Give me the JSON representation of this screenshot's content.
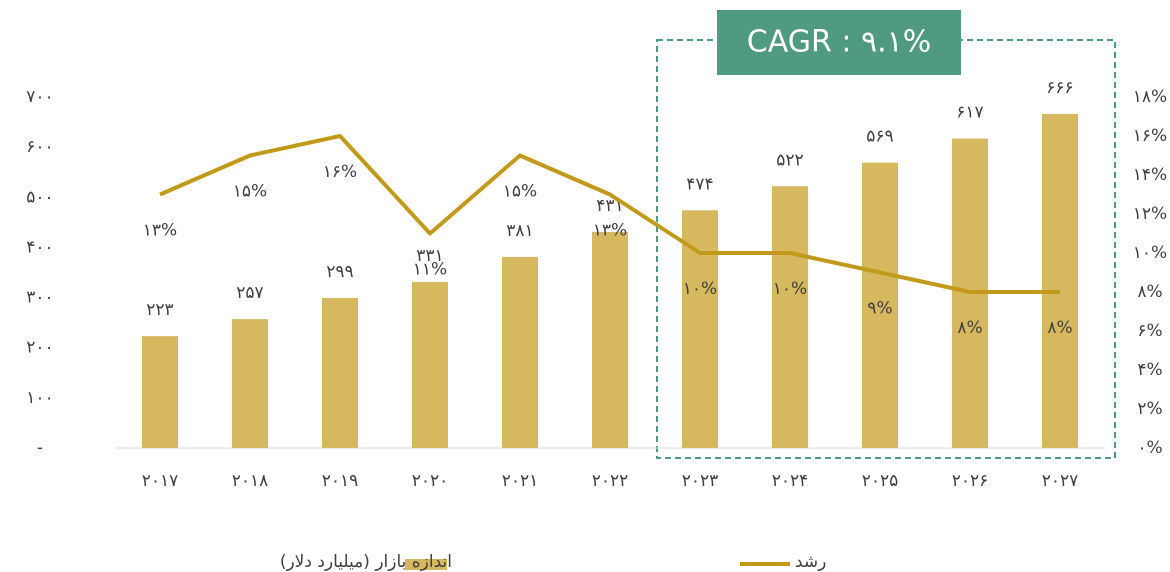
{
  "chart_data": {
    "type": "bar",
    "categories": [
      "۲۰۱۷",
      "۲۰۱۸",
      "۲۰۱۹",
      "۲۰۲۰",
      "۲۰۲۱",
      "۲۰۲۲",
      "۲۰۲۳",
      "۲۰۲۴",
      "۲۰۲۵",
      "۲۰۲۶",
      "۲۰۲۷"
    ],
    "series": [
      {
        "name": "اندازه بازار (میلیارد دلار)",
        "type": "bar",
        "color": "#d6b85e",
        "values": [
          223,
          257,
          299,
          331,
          381,
          431,
          474,
          522,
          569,
          617,
          666
        ],
        "value_labels": [
          "۲۲۳",
          "۲۵۷",
          "۲۹۹",
          "۳۳۱",
          "۳۸۱",
          "۴۳۱",
          "۴۷۴",
          "۵۲۲",
          "۵۶۹",
          "۶۱۷",
          "۶۶۶"
        ]
      },
      {
        "name": "رشد",
        "type": "line",
        "axis": "y2",
        "color": "#c19a1b",
        "values": [
          13,
          15,
          16,
          11,
          15,
          13,
          10,
          10,
          9,
          8,
          8
        ],
        "value_labels": [
          "۱۳%",
          "۱۵%",
          "۱۶%",
          "۱۱%",
          "۱۵%",
          "۱۳%",
          "۱۰%",
          "۱۰%",
          "۹%",
          "۸%",
          "۸%"
        ]
      }
    ],
    "ylim": [
      0,
      700
    ],
    "yticks": [
      {
        "value": 0,
        "label": "-"
      },
      {
        "value": 100,
        "label": "۱۰۰"
      },
      {
        "value": 200,
        "label": "۲۰۰"
      },
      {
        "value": 300,
        "label": "۳۰۰"
      },
      {
        "value": 400,
        "label": "۴۰۰"
      },
      {
        "value": 500,
        "label": "۵۰۰"
      },
      {
        "value": 600,
        "label": "۶۰۰"
      },
      {
        "value": 700,
        "label": "۷۰۰"
      }
    ],
    "y2lim": [
      0,
      18
    ],
    "y2ticks": [
      {
        "value": 0,
        "label": "۰%"
      },
      {
        "value": 2,
        "label": "۲%"
      },
      {
        "value": 4,
        "label": "۴%"
      },
      {
        "value": 6,
        "label": "۶%"
      },
      {
        "value": 8,
        "label": "۸%"
      },
      {
        "value": 10,
        "label": "۱۰%"
      },
      {
        "value": 12,
        "label": "۱۲%"
      },
      {
        "value": 14,
        "label": "۱۴%"
      },
      {
        "value": 16,
        "label": "۱۶%"
      },
      {
        "value": 18,
        "label": "۱۸%"
      }
    ],
    "annotation": "CAGR : ۹.۱%",
    "grid": false
  }
}
